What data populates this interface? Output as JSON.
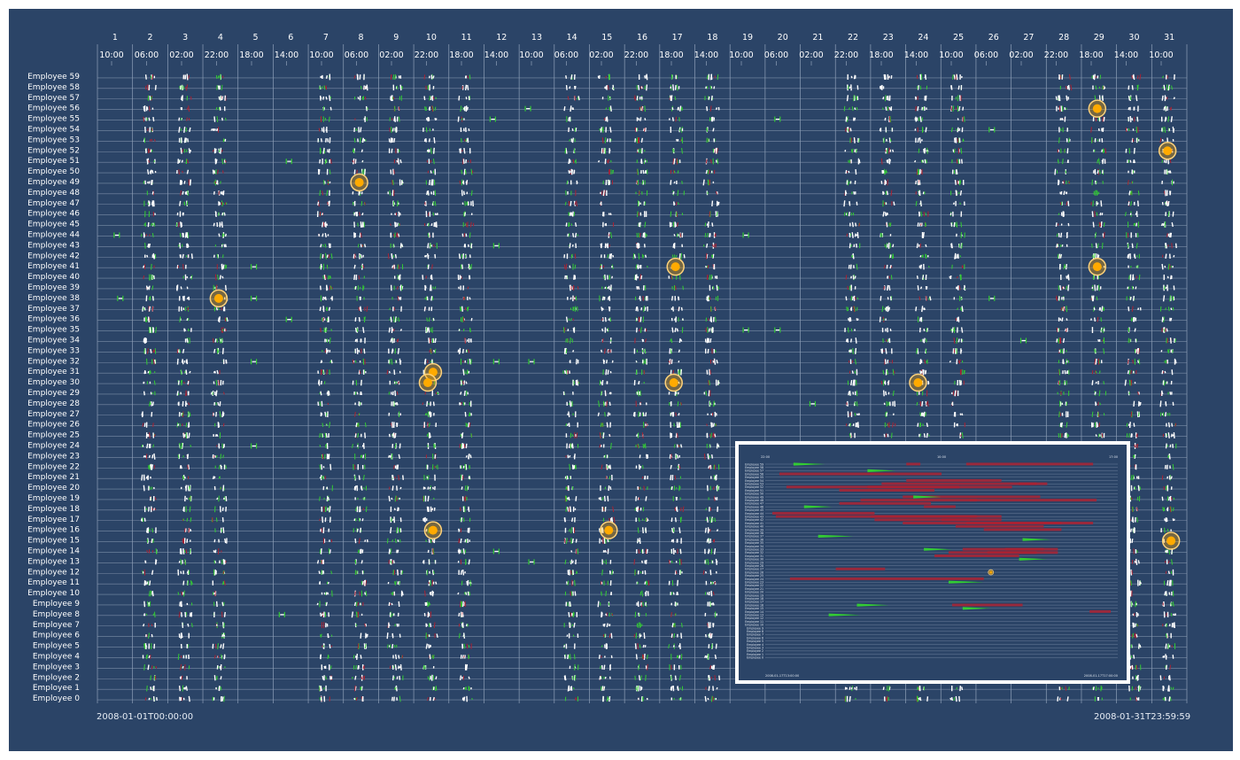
{
  "colors": {
    "background": "#2b4467",
    "grid": "#8fa0b8",
    "label": "#ffffff",
    "stroke_positive": "#33cc33",
    "stroke_negative": "#aa2233",
    "stroke_neutral": "#ffffff",
    "highlight_fill": "#ffaa00",
    "highlight_ring": "#ffd27a"
  },
  "stamps": {
    "start": "2008-01-01T00:00:00",
    "end": "2008-01-31T23:59:59"
  },
  "chart_data": {
    "type": "scatter",
    "title": "",
    "xlabel": "",
    "ylabel": "",
    "x_range": [
      "2008-01-01T00:00:00",
      "2008-01-31T23:59:59"
    ],
    "days": [
      "1",
      "2",
      "3",
      "4",
      "5",
      "6",
      "7",
      "8",
      "9",
      "10",
      "11",
      "12",
      "13",
      "14",
      "15",
      "16",
      "17",
      "18",
      "19",
      "20",
      "21",
      "22",
      "23",
      "24",
      "25",
      "26",
      "27",
      "28",
      "29",
      "30",
      "31"
    ],
    "time_ticks": [
      "10:00",
      "06:00",
      "02:00",
      "22:00",
      "18:00",
      "14:00",
      "10:00",
      "06:00",
      "02:00",
      "22:00",
      "18:00",
      "14:00",
      "10:00",
      "06:00",
      "02:00",
      "22:00",
      "18:00",
      "14:00",
      "10:00",
      "06:00",
      "02:00",
      "22:00",
      "18:00",
      "14:00",
      "10:00",
      "06:00",
      "02:00",
      "22:00",
      "18:00",
      "14:00",
      "10:00",
      "06:00",
      "02:00",
      "22:00",
      "18:00",
      "14:00",
      "10:00",
      "06:00",
      "02:00",
      "22:00",
      "18:00",
      "14:00",
      "10:00",
      "06:00",
      "02:00",
      "22:00",
      "18:00",
      "14:00",
      "10:00"
    ],
    "employees": [
      "Employee 59",
      "Employee 58",
      "Employee 57",
      "Employee 56",
      "Employee 55",
      "Employee 54",
      "Employee 53",
      "Employee 52",
      "Employee 51",
      "Employee 50",
      "Employee 49",
      "Employee 48",
      "Employee 47",
      "Employee 46",
      "Employee 45",
      "Employee 44",
      "Employee 43",
      "Employee 42",
      "Employee 41",
      "Employee 40",
      "Employee 39",
      "Employee 38",
      "Employee 37",
      "Employee 36",
      "Employee 35",
      "Employee 34",
      "Employee 33",
      "Employee 32",
      "Employee 31",
      "Employee 30",
      "Employee 29",
      "Employee 28",
      "Employee 27",
      "Employee 26",
      "Employee 25",
      "Employee 24",
      "Employee 23",
      "Employee 22",
      "Employee 21",
      "Employee 20",
      "Employee 19",
      "Employee 18",
      "Employee 17",
      "Employee 16",
      "Employee 15",
      "Employee 14",
      "Employee 13",
      "Employee 12",
      "Employee 11",
      "Employee 10",
      "Employee 9",
      "Employee 8",
      "Employee 7",
      "Employee 6",
      "Employee 5",
      "Employee 4",
      "Employee 3",
      "Employee 2",
      "Employee 1",
      "Employee 0"
    ],
    "active_days": [
      2,
      3,
      4,
      7,
      8,
      9,
      10,
      11,
      14,
      15,
      16,
      17,
      18,
      22,
      23,
      24,
      25,
      28,
      29,
      30,
      31
    ],
    "highlights": [
      {
        "day": 29.0,
        "employee": 56
      },
      {
        "day": 31.0,
        "employee": 52
      },
      {
        "day": 8.0,
        "employee": 49
      },
      {
        "day": 17.0,
        "employee": 41
      },
      {
        "day": 29.0,
        "employee": 41
      },
      {
        "day": 4.0,
        "employee": 38
      },
      {
        "day": 10.1,
        "employee": 31
      },
      {
        "day": 9.95,
        "employee": 30
      },
      {
        "day": 16.95,
        "employee": 30
      },
      {
        "day": 23.9,
        "employee": 30
      },
      {
        "day": 10.1,
        "employee": 16
      },
      {
        "day": 15.1,
        "employee": 16
      },
      {
        "day": 31.1,
        "employee": 15
      }
    ],
    "isolated": [
      {
        "day": 1.1,
        "employee": 44
      },
      {
        "day": 1.2,
        "employee": 38
      },
      {
        "day": 5.0,
        "employee": 41
      },
      {
        "day": 5.0,
        "employee": 38
      },
      {
        "day": 5.0,
        "employee": 32
      },
      {
        "day": 5.0,
        "employee": 24
      },
      {
        "day": 6.0,
        "employee": 51
      },
      {
        "day": 6.0,
        "employee": 36
      },
      {
        "day": 5.8,
        "employee": 8
      },
      {
        "day": 11.8,
        "employee": 55
      },
      {
        "day": 11.9,
        "employee": 43
      },
      {
        "day": 11.9,
        "employee": 32
      },
      {
        "day": 11.9,
        "employee": 14
      },
      {
        "day": 12.8,
        "employee": 56
      },
      {
        "day": 12.9,
        "employee": 32
      },
      {
        "day": 12.9,
        "employee": 13
      },
      {
        "day": 19.0,
        "employee": 44
      },
      {
        "day": 19.0,
        "employee": 35
      },
      {
        "day": 19.9,
        "employee": 55
      },
      {
        "day": 19.9,
        "employee": 35
      },
      {
        "day": 20.9,
        "employee": 28
      },
      {
        "day": 26.0,
        "employee": 54
      },
      {
        "day": 26.0,
        "employee": 38
      },
      {
        "day": 26.9,
        "employee": 34
      }
    ]
  },
  "inset": {
    "label": "zoomed-detail",
    "top_left_tick": "22:00",
    "top_mid_tick": "10:00",
    "top_right_tick": "17:00",
    "bottom_left_stamp": "2008-01-17T13:00:00",
    "bottom_right_stamp": "2008-01-17T17:00:00",
    "employees": [
      "Employee 59",
      "Employee 58",
      "Employee 57",
      "Employee 56",
      "Employee 55",
      "Employee 54",
      "Employee 53",
      "Employee 52",
      "Employee 51",
      "Employee 50",
      "Employee 49",
      "Employee 48",
      "Employee 47",
      "Employee 46",
      "Employee 45",
      "Employee 44",
      "Employee 43",
      "Employee 42",
      "Employee 41",
      "Employee 40",
      "Employee 39",
      "Employee 38",
      "Employee 37",
      "Employee 36",
      "Employee 35",
      "Employee 34",
      "Employee 33",
      "Employee 32",
      "Employee 31",
      "Employee 30",
      "Employee 29",
      "Employee 28",
      "Employee 27",
      "Employee 26",
      "Employee 25",
      "Employee 24",
      "Employee 23",
      "Employee 22",
      "Employee 21",
      "Employee 20",
      "Employee 19",
      "Employee 18",
      "Employee 17",
      "Employee 16",
      "Employee 15",
      "Employee 14",
      "Employee 13",
      "Employee 12",
      "Employee 11",
      "Employee 10",
      "Employee 9",
      "Employee 8",
      "Employee 7",
      "Employee 6",
      "Employee 5",
      "Employee 4",
      "Employee 3",
      "Employee 2",
      "Employee 1",
      "Employee 0"
    ],
    "red_bars": [
      {
        "row": 0,
        "start": 0.4,
        "end": 0.44
      },
      {
        "row": 0,
        "start": 0.57,
        "end": 0.93
      },
      {
        "row": 3,
        "start": 0.04,
        "end": 0.5
      },
      {
        "row": 5,
        "start": 0.4,
        "end": 0.67
      },
      {
        "row": 6,
        "start": 0.33,
        "end": 0.77
      },
      {
        "row": 6,
        "start": 0.72,
        "end": 0.8
      },
      {
        "row": 7,
        "start": 0.06,
        "end": 0.55
      },
      {
        "row": 7,
        "start": 0.29,
        "end": 0.7
      },
      {
        "row": 8,
        "start": 0.21,
        "end": 0.48
      },
      {
        "row": 10,
        "start": 0.39,
        "end": 0.78
      },
      {
        "row": 11,
        "start": 0.27,
        "end": 0.6
      },
      {
        "row": 11,
        "start": 0.58,
        "end": 0.94
      },
      {
        "row": 12,
        "start": 0.21,
        "end": 0.47
      },
      {
        "row": 13,
        "start": 0.45,
        "end": 0.54
      },
      {
        "row": 15,
        "start": 0.02,
        "end": 0.31
      },
      {
        "row": 16,
        "start": 0.03,
        "end": 0.6
      },
      {
        "row": 16,
        "start": 0.3,
        "end": 0.67
      },
      {
        "row": 17,
        "start": 0.31,
        "end": 0.58
      },
      {
        "row": 17,
        "start": 0.5,
        "end": 0.67
      },
      {
        "row": 18,
        "start": 0.39,
        "end": 0.84
      },
      {
        "row": 18,
        "start": 0.57,
        "end": 0.93
      },
      {
        "row": 19,
        "start": 0.54,
        "end": 0.79
      },
      {
        "row": 20,
        "start": 0.62,
        "end": 0.84
      },
      {
        "row": 26,
        "start": 0.56,
        "end": 0.79
      },
      {
        "row": 26,
        "start": 0.68,
        "end": 0.83
      },
      {
        "row": 27,
        "start": 0.52,
        "end": 0.77
      },
      {
        "row": 27,
        "start": 0.63,
        "end": 0.83
      },
      {
        "row": 28,
        "start": 0.48,
        "end": 0.72
      },
      {
        "row": 32,
        "start": 0.2,
        "end": 0.34
      },
      {
        "row": 35,
        "start": 0.07,
        "end": 0.62
      },
      {
        "row": 43,
        "start": 0.53,
        "end": 0.73
      },
      {
        "row": 45,
        "start": 0.92,
        "end": 0.98
      }
    ],
    "green_bars": [
      {
        "row": 0,
        "start": 0.08,
        "end": 0.17
      },
      {
        "row": 2,
        "start": 0.29,
        "end": 0.37
      },
      {
        "row": 10,
        "start": 0.42,
        "end": 0.5
      },
      {
        "row": 13,
        "start": 0.11,
        "end": 0.19
      },
      {
        "row": 22,
        "start": 0.15,
        "end": 0.25
      },
      {
        "row": 23,
        "start": 0.73,
        "end": 0.81
      },
      {
        "row": 26,
        "start": 0.45,
        "end": 0.53
      },
      {
        "row": 29,
        "start": 0.72,
        "end": 0.8
      },
      {
        "row": 36,
        "start": 0.52,
        "end": 0.62
      },
      {
        "row": 43,
        "start": 0.26,
        "end": 0.35
      },
      {
        "row": 44,
        "start": 0.56,
        "end": 0.64
      },
      {
        "row": 46,
        "start": 0.18,
        "end": 0.27
      }
    ],
    "highlight": {
      "row": 33,
      "pos": 0.64
    }
  }
}
